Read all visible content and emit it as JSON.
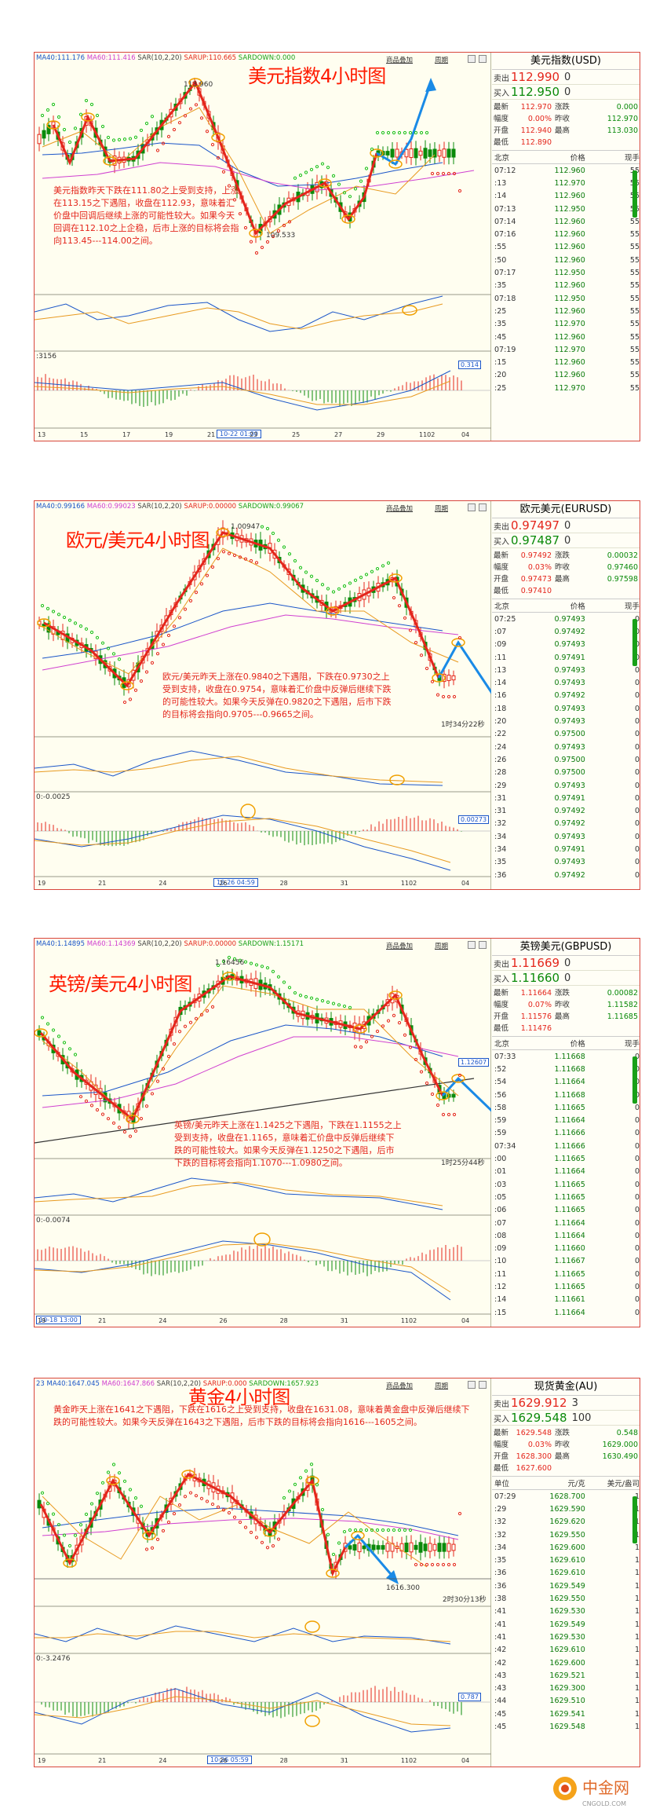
{
  "header_buttons": {
    "add": "商品叠加",
    "period": "周期"
  },
  "side_table_headers": {
    "time": "北京",
    "price": "价格",
    "hand": "现手"
  },
  "panels": [
    {
      "key": "usd",
      "title": "美元指数4小时图",
      "indicators": [
        {
          "text": "MA40:111.176",
          "color": "#1a55c8"
        },
        {
          "text": "MA60:111.416",
          "color": "#d040d0"
        },
        {
          "text": "SAR(10,2,20)",
          "color": "#444444"
        },
        {
          "text": "SARUP:110.665",
          "color": "#e4261c"
        },
        {
          "text": "SARDOWN:0.000",
          "color": "#19a019"
        }
      ],
      "note": "美元指数昨天下跌在111.80之上受到支持，上涨在113.15之下遇阻，收盘在112.93，意味着汇价盘中回调后继续上涨的可能性较大。如果今天回调在112.10之上企稳，后市上涨的目标将会指向113.45---114.00之间。",
      "annotations": {
        "high": "113.960",
        "low": "109.533",
        "macd_start": ":3156",
        "macd_badge": "0.314",
        "time_box": "10-22 01:00"
      },
      "xticks": [
        "13",
        "15",
        "17",
        "19",
        "21",
        "23",
        "25",
        "27",
        "29",
        "1102",
        "04"
      ],
      "side": {
        "name": "美元指数(USD)",
        "sell_label": "卖出",
        "sell": "112.990",
        "sell_vol": "0",
        "buy_label": "买入",
        "buy": "112.950",
        "buy_vol": "0",
        "stats": [
          [
            "最新",
            "112.970",
            "涨跌",
            "0.000"
          ],
          [
            "幅度",
            "0.00%",
            "昨收",
            "112.970"
          ],
          [
            "开盘",
            "112.940",
            "最高",
            "113.030"
          ],
          [
            "最低",
            "112.890",
            "",
            ""
          ]
        ],
        "ticks": [
          [
            "07:12",
            "112.960",
            "55"
          ],
          [
            ":13",
            "112.970",
            "55"
          ],
          [
            ":14",
            "112.960",
            "55"
          ],
          [
            "07:13",
            "112.950",
            "55"
          ],
          [
            "07:14",
            "112.960",
            "55"
          ],
          [
            "07:16",
            "112.960",
            "55"
          ],
          [
            ":55",
            "112.960",
            "55"
          ],
          [
            ":50",
            "112.960",
            "55"
          ],
          [
            "07:17",
            "112.950",
            "55"
          ],
          [
            ":35",
            "112.960",
            "55"
          ],
          [
            "07:18",
            "112.950",
            "55"
          ],
          [
            ":25",
            "112.960",
            "55"
          ],
          [
            ":35",
            "112.970",
            "55"
          ],
          [
            ":45",
            "112.960",
            "55"
          ],
          [
            "07:19",
            "112.970",
            "55"
          ],
          [
            ":15",
            "112.960",
            "55"
          ],
          [
            ":20",
            "112.960",
            "55"
          ],
          [
            ":25",
            "112.970",
            "55"
          ]
        ]
      }
    },
    {
      "key": "eur",
      "title": "欧元/美元4小时图",
      "indicators": [
        {
          "text": "MA40:0.99166",
          "color": "#1a55c8"
        },
        {
          "text": "MA60:0.99023",
          "color": "#d040d0"
        },
        {
          "text": "SAR(10,2,20)",
          "color": "#444444"
        },
        {
          "text": "SARUP:0.00000",
          "color": "#e4261c"
        },
        {
          "text": "SARDOWN:0.99067",
          "color": "#19a019"
        }
      ],
      "note": "欧元/美元昨天上涨在0.9840之下遇阻，下跌在0.9730之上受到支持，收盘在0.9754，意味着汇价盘中反弹后继续下跌的可能性较大。如果今天反弹在0.9820之下遇阻，后市下跌的目标将会指向0.9705---0.9665之间。",
      "annotations": {
        "high": "1.00947",
        "countdown": "1时34分22秒",
        "macd_start": "0:-0.0025",
        "macd_badge": "0.00273",
        "time_box": "10-26 04:59"
      },
      "xticks": [
        "19",
        "21",
        "24",
        "26",
        "28",
        "31",
        "1102",
        "04"
      ],
      "side": {
        "name": "欧元美元(EURUSD)",
        "sell_label": "卖出",
        "sell": "0.97497",
        "sell_vol": "0",
        "buy_label": "买入",
        "buy": "0.97487",
        "buy_vol": "0",
        "stats": [
          [
            "最新",
            "0.97492",
            "涨跌",
            "0.00032"
          ],
          [
            "幅度",
            "0.03%",
            "昨收",
            "0.97460"
          ],
          [
            "开盘",
            "0.97473",
            "最高",
            "0.97598"
          ],
          [
            "最低",
            "0.97410",
            "",
            ""
          ]
        ],
        "ticks": [
          [
            "07:25",
            "0.97493",
            "0"
          ],
          [
            ":07",
            "0.97492",
            "0"
          ],
          [
            ":09",
            "0.97493",
            "0"
          ],
          [
            ":11",
            "0.97491",
            "0"
          ],
          [
            ":13",
            "0.97493",
            "0"
          ],
          [
            ":14",
            "0.97493",
            "0"
          ],
          [
            ":16",
            "0.97492",
            "0"
          ],
          [
            ":18",
            "0.97493",
            "0"
          ],
          [
            ":20",
            "0.97493",
            "0"
          ],
          [
            ":22",
            "0.97500",
            "0"
          ],
          [
            ":24",
            "0.97493",
            "0"
          ],
          [
            ":26",
            "0.97500",
            "0"
          ],
          [
            ":28",
            "0.97500",
            "0"
          ],
          [
            ":29",
            "0.97493",
            "0"
          ],
          [
            ":31",
            "0.97491",
            "0"
          ],
          [
            ":31",
            "0.97492",
            "0"
          ],
          [
            ":32",
            "0.97492",
            "0"
          ],
          [
            ":34",
            "0.97493",
            "0"
          ],
          [
            ":34",
            "0.97491",
            "0"
          ],
          [
            ":35",
            "0.97493",
            "0"
          ],
          [
            ":36",
            "0.97492",
            "0"
          ]
        ]
      }
    },
    {
      "key": "gbp",
      "title": "英镑/美元4小时图",
      "indicators": [
        {
          "text": "MA40:1.14895",
          "color": "#1a55c8"
        },
        {
          "text": "MA60:1.14369",
          "color": "#d040d0"
        },
        {
          "text": "SAR(10,2,20)",
          "color": "#444444"
        },
        {
          "text": "SARUP:0.00000",
          "color": "#e4261c"
        },
        {
          "text": "SARDOWN:1.15171",
          "color": "#19a019"
        }
      ],
      "note": "英镑/美元昨天上涨在1.1425之下遇阻，下跌在1.1155之上受到支持，收盘在1.1165，意味着汇价盘中反弹后继续下跌的可能性较大。如果今天反弹在1.1250之下遇阻，后市下跌的目标将会指向1.1070---1.0980之间。",
      "annotations": {
        "high": "1.16456",
        "countdown": "1时25分44秒",
        "macd_start": "0:-0.0074",
        "price_badge": "1.12607",
        "time_box": "10-18 13:00"
      },
      "xticks": [
        "19",
        "21",
        "24",
        "26",
        "28",
        "31",
        "1102",
        "04"
      ],
      "side": {
        "name": "英镑美元(GBPUSD)",
        "sell_label": "卖出",
        "sell": "1.11669",
        "sell_vol": "0",
        "buy_label": "买入",
        "buy": "1.11660",
        "buy_vol": "0",
        "stats": [
          [
            "最新",
            "1.11664",
            "涨跌",
            "0.00082"
          ],
          [
            "幅度",
            "0.07%",
            "昨收",
            "1.11582"
          ],
          [
            "开盘",
            "1.11576",
            "最高",
            "1.11685"
          ],
          [
            "最低",
            "1.11476",
            "",
            ""
          ]
        ],
        "ticks": [
          [
            "07:33",
            "1.11668",
            "0"
          ],
          [
            ":52",
            "1.11668",
            "0"
          ],
          [
            ":54",
            "1.11664",
            "0"
          ],
          [
            ":56",
            "1.11668",
            "0"
          ],
          [
            ":58",
            "1.11665",
            "0"
          ],
          [
            ":59",
            "1.11664",
            "0"
          ],
          [
            ":59",
            "1.11666",
            "0"
          ],
          [
            "07:34",
            "1.11666",
            "0"
          ],
          [
            ":00",
            "1.11665",
            "0"
          ],
          [
            ":01",
            "1.11664",
            "0"
          ],
          [
            ":03",
            "1.11665",
            "0"
          ],
          [
            ":05",
            "1.11665",
            "0"
          ],
          [
            ":06",
            "1.11665",
            "0"
          ],
          [
            ":07",
            "1.11664",
            "0"
          ],
          [
            ":08",
            "1.11664",
            "0"
          ],
          [
            ":09",
            "1.11660",
            "0"
          ],
          [
            ":10",
            "1.11667",
            "0"
          ],
          [
            ":11",
            "1.11665",
            "0"
          ],
          [
            ":12",
            "1.11665",
            "0"
          ],
          [
            ":14",
            "1.11661",
            "0"
          ],
          [
            ":15",
            "1.11664",
            "0"
          ]
        ]
      }
    },
    {
      "key": "xau",
      "title": "黄金4小时图",
      "indicators": [
        {
          "text": "23 MA40:1647.045",
          "color": "#1a55c8"
        },
        {
          "text": "MA60:1647.866",
          "color": "#d040d0"
        },
        {
          "text": "SAR(10,2,20)",
          "color": "#444444"
        },
        {
          "text": "SARUP:0.000",
          "color": "#e4261c"
        },
        {
          "text": "SARDOWN:1657.923",
          "color": "#19a019"
        }
      ],
      "note": "黄金昨天上涨在1641之下遇阻，下跌在1616之上受到支持，收盘在1631.08，意味着黄金盘中反弹后继续下跌的可能性较大。如果今天反弹在1643之下遇阻，后市下跌的目标将会指向1616---1605之间。",
      "annotations": {
        "low": "1616.300",
        "countdown": "2时30分13秒",
        "macd_start": "0:-3.2476",
        "macd_badge": "0.787",
        "time_box": "10-26 05:59"
      },
      "xticks": [
        "19",
        "21",
        "24",
        "26",
        "28",
        "31",
        "1102",
        "04"
      ],
      "side": {
        "name": "现货黄金(AU)",
        "sell_label": "卖出",
        "sell": "1629.912",
        "sell_vol": "3",
        "buy_label": "买入",
        "buy": "1629.548",
        "buy_vol": "100",
        "stats": [
          [
            "最新",
            "1629.548",
            "涨跌",
            "0.548"
          ],
          [
            "幅度",
            "0.03%",
            "昨收",
            "1629.000"
          ],
          [
            "开盘",
            "1628.300",
            "最高",
            "1630.490"
          ],
          [
            "最低",
            "1627.600",
            "",
            ""
          ]
        ],
        "unit_row": [
          "单位",
          "元/克",
          "美元/盎司"
        ],
        "ticks": [
          [
            "07:29",
            "1628.700",
            "1"
          ],
          [
            ":29",
            "1629.590",
            "1"
          ],
          [
            ":32",
            "1629.620",
            "1"
          ],
          [
            ":32",
            "1629.550",
            "1"
          ],
          [
            ":34",
            "1629.600",
            "1"
          ],
          [
            ":35",
            "1629.610",
            "1"
          ],
          [
            ":36",
            "1629.610",
            "1"
          ],
          [
            ":36",
            "1629.549",
            "1"
          ],
          [
            ":38",
            "1629.550",
            "1"
          ],
          [
            ":41",
            "1629.530",
            "1"
          ],
          [
            ":41",
            "1629.549",
            "1"
          ],
          [
            ":41",
            "1629.530",
            "1"
          ],
          [
            ":42",
            "1629.610",
            "1"
          ],
          [
            ":42",
            "1629.600",
            "1"
          ],
          [
            ":43",
            "1629.521",
            "1"
          ],
          [
            ":43",
            "1629.300",
            "1"
          ],
          [
            ":44",
            "1629.510",
            "1"
          ],
          [
            ":45",
            "1629.541",
            "1"
          ],
          [
            ":45",
            "1629.548",
            "1"
          ]
        ]
      }
    }
  ],
  "chart_data": [
    {
      "type": "line",
      "title": "美元指数4小时图",
      "series": [
        {
          "name": "",
          "values": [
            111.3,
            112.6,
            111.2,
            112.9,
            111.5,
            113.96,
            111.0,
            109.533,
            111.2,
            112.3,
            110.9,
            113.2,
            112.1,
            113.8
          ]
        }
      ]
    },
    {
      "type": "line",
      "title": "欧元/美元4小时图",
      "series": [
        {
          "name": "",
          "values": [
            0.984,
            0.976,
            0.969,
            0.987,
            1.00947,
            0.995,
            0.99,
            0.996,
            0.978,
            0.982,
            0.97
          ]
        }
      ]
    },
    {
      "type": "line",
      "title": "英镑/美元4小时图",
      "series": [
        {
          "name": "",
          "values": [
            1.134,
            1.12,
            1.107,
            1.14,
            1.16456,
            1.153,
            1.146,
            1.152,
            1.1165,
            1.125,
            1.103
          ]
        }
      ]
    },
    {
      "type": "line",
      "title": "黄金4小时图",
      "series": [
        {
          "name": "",
          "values": [
            1655,
            1620,
            1672,
            1640,
            1675,
            1650,
            1630,
            1675,
            1616.3,
            1643,
            1608
          ]
        }
      ]
    }
  ]
}
